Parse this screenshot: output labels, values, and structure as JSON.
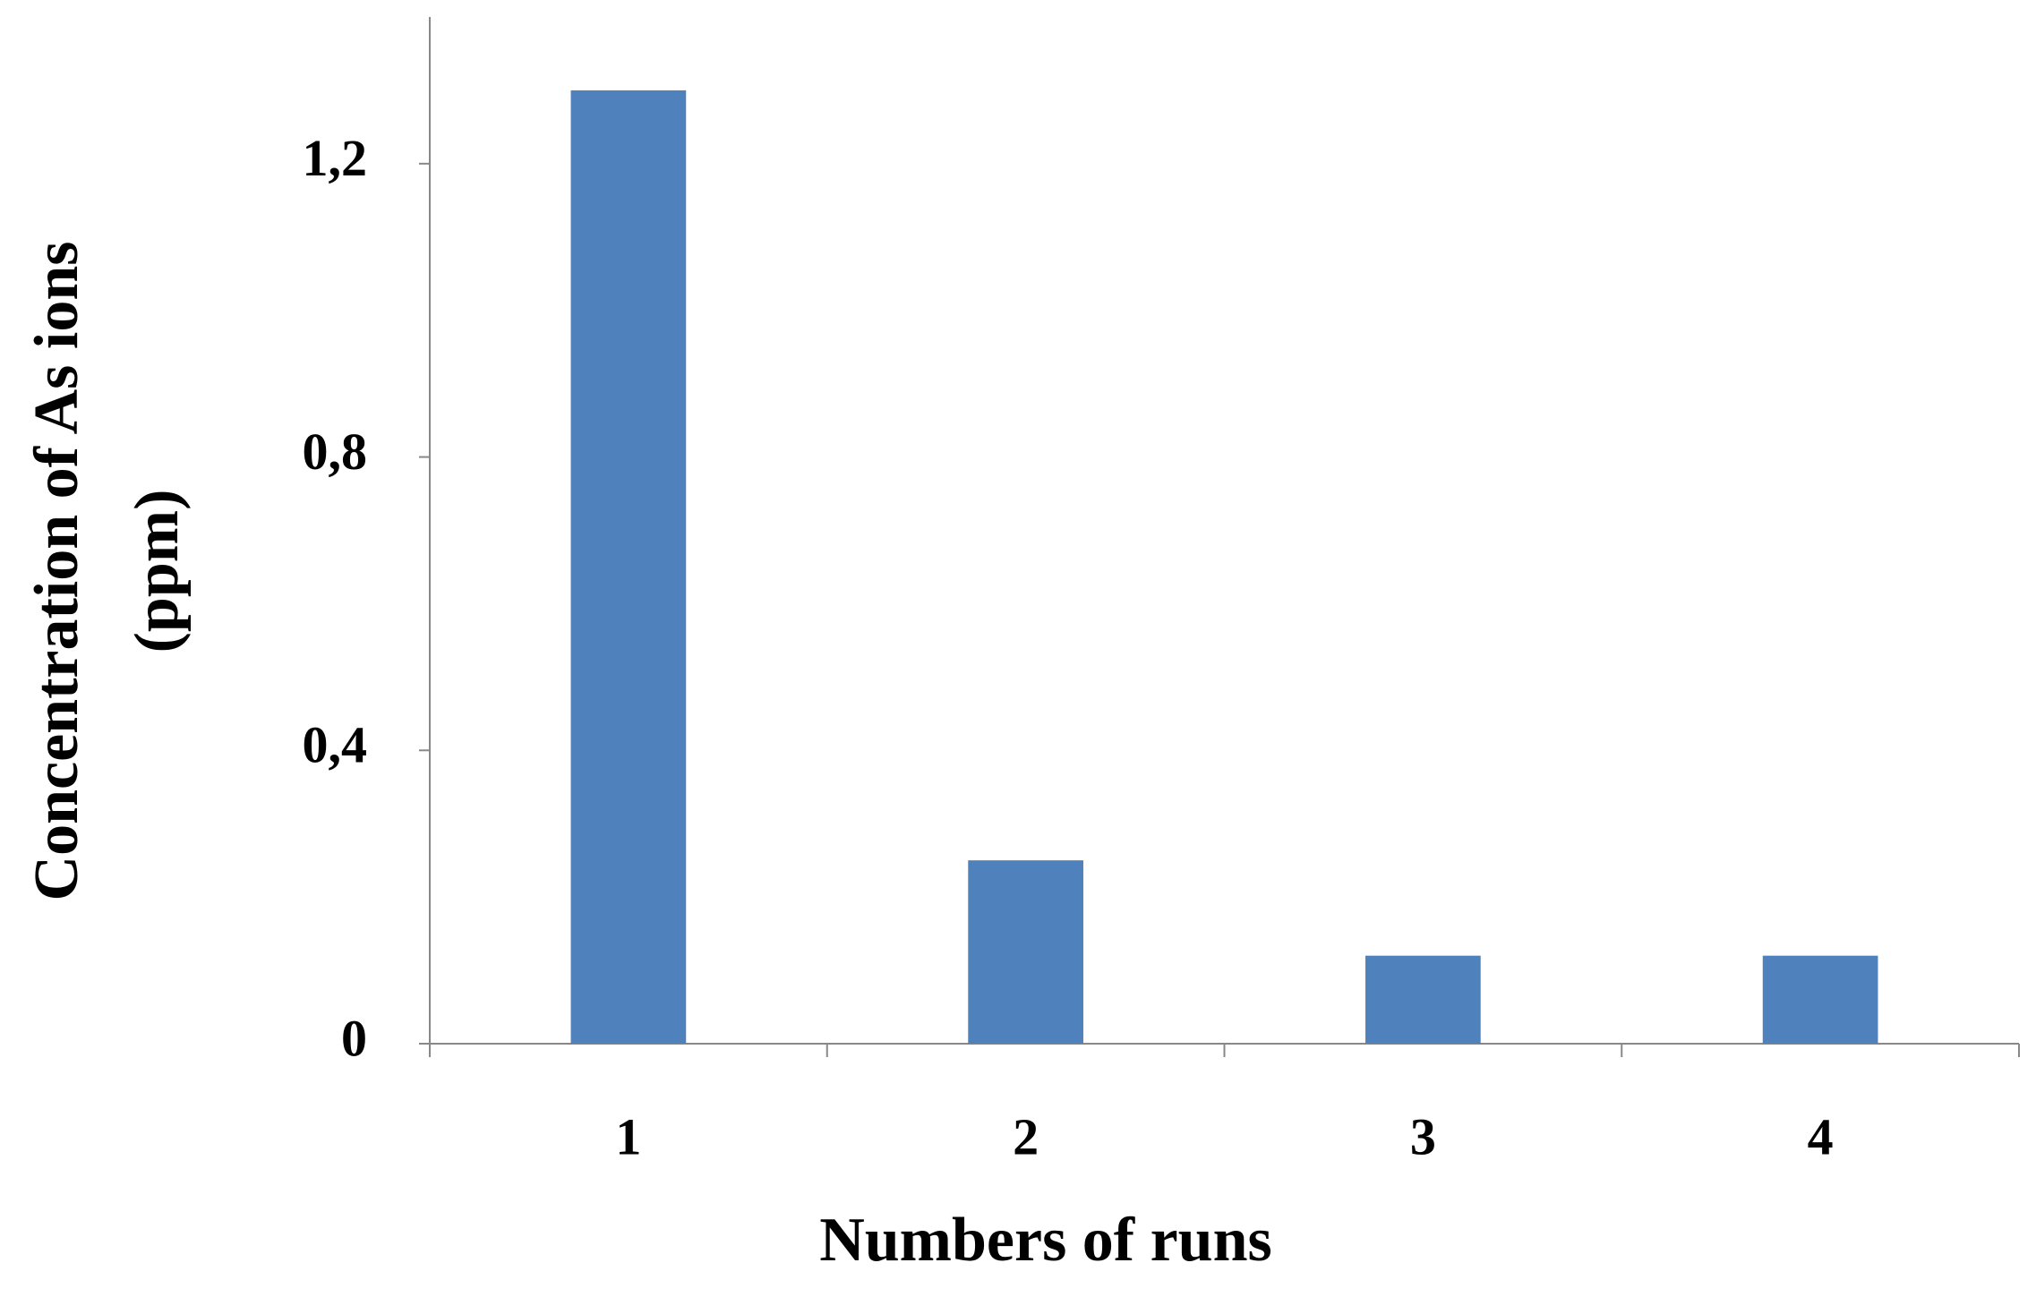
{
  "chart_data": {
    "type": "bar",
    "ylabel": [
      "Concentration of  As ions",
      "(ppm)"
    ],
    "xlabel": "Numbers of runs",
    "categories": [
      "1",
      "2",
      "3",
      "4"
    ],
    "values": [
      1.3,
      0.25,
      0.12,
      0.12
    ],
    "color": "#4f81bd",
    "ylim": [
      0,
      1.4
    ],
    "yticks": [
      0,
      {
        "value": 0.4,
        "label": "0,4"
      },
      {
        "value": 0.8,
        "label": "0,8"
      },
      {
        "value": 1.2,
        "label": "1,2"
      }
    ],
    "grid": false
  }
}
